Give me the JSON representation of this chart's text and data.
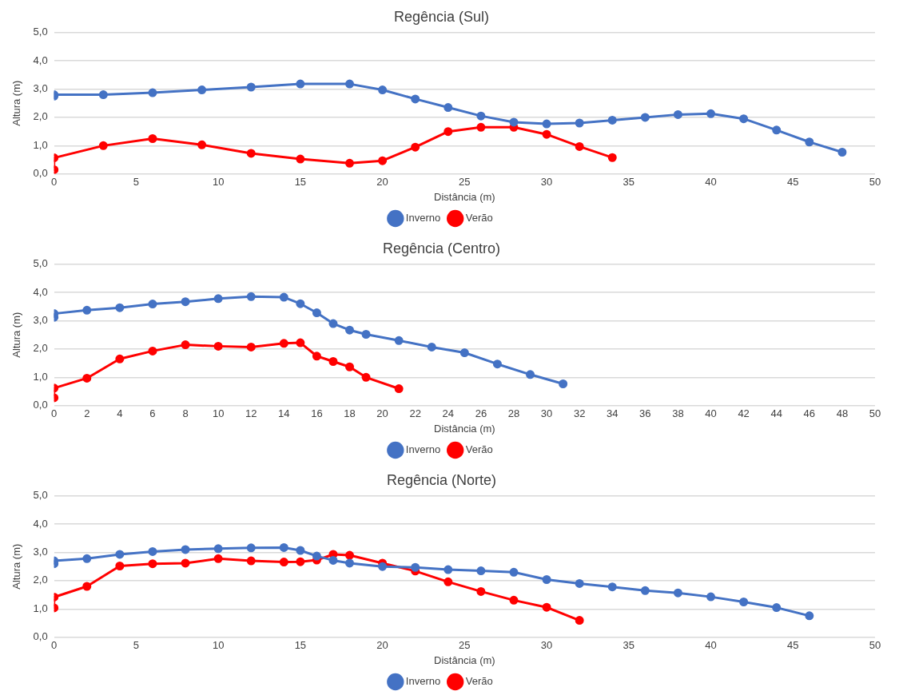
{
  "chart_data": [
    {
      "type": "line",
      "title": "Regência (Sul)",
      "xlabel": "Distância (m)",
      "ylabel": "Altura (m)",
      "xlim": [
        0,
        50
      ],
      "xticks": [
        0,
        5,
        10,
        15,
        20,
        25,
        30,
        35,
        40,
        45,
        50
      ],
      "ylim": [
        0,
        5
      ],
      "yticks": [
        {
          "value": 0,
          "label": "0,0"
        },
        {
          "value": 1,
          "label": "1,0"
        },
        {
          "value": 2,
          "label": "2,0"
        },
        {
          "value": 3,
          "label": "3,0"
        },
        {
          "value": 4,
          "label": "4,0"
        },
        {
          "value": 5,
          "label": "5,0"
        }
      ],
      "grid": "y",
      "legend": "bottom",
      "marker": "circle",
      "series": [
        {
          "name": "Inverno",
          "color": "#4472c4",
          "x": [
            0,
            0,
            3,
            6,
            9,
            12,
            15,
            18,
            20,
            22,
            24,
            26,
            28,
            30,
            32,
            34,
            36,
            38,
            40,
            42,
            44,
            46,
            48
          ],
          "values": [
            2.75,
            2.8,
            2.8,
            2.87,
            2.97,
            3.07,
            3.18,
            3.18,
            2.97,
            2.65,
            2.35,
            2.05,
            1.83,
            1.77,
            1.8,
            1.9,
            2.0,
            2.1,
            2.13,
            1.95,
            1.55,
            1.13,
            0.77
          ]
        },
        {
          "name": "Verão",
          "color": "#ff0000",
          "x": [
            0,
            0,
            3,
            6,
            9,
            12,
            15,
            18,
            20,
            22,
            24,
            26,
            28,
            30,
            32,
            34
          ],
          "values": [
            0.15,
            0.57,
            1.0,
            1.25,
            1.03,
            0.73,
            0.53,
            0.38,
            0.47,
            0.95,
            1.5,
            1.65,
            1.65,
            1.4,
            0.97,
            0.58
          ]
        }
      ]
    },
    {
      "type": "line",
      "title": "Regência (Centro)",
      "xlabel": "Distância (m)",
      "ylabel": "Altura (m)",
      "xlim": [
        0,
        50
      ],
      "xticks": [
        0,
        2,
        4,
        6,
        8,
        10,
        12,
        14,
        16,
        18,
        20,
        22,
        24,
        26,
        28,
        30,
        32,
        34,
        36,
        38,
        40,
        42,
        44,
        46,
        48,
        50
      ],
      "ylim": [
        0,
        5
      ],
      "yticks": [
        {
          "value": 0,
          "label": "0,0"
        },
        {
          "value": 1,
          "label": "1,0"
        },
        {
          "value": 2,
          "label": "2,0"
        },
        {
          "value": 3,
          "label": "3,0"
        },
        {
          "value": 4,
          "label": "4,0"
        },
        {
          "value": 5,
          "label": "5,0"
        }
      ],
      "grid": "y",
      "legend": "bottom",
      "marker": "circle",
      "series": [
        {
          "name": "Inverno",
          "color": "#4472c4",
          "x": [
            0,
            0,
            2,
            4,
            6,
            8,
            10,
            12,
            14,
            15,
            16,
            17,
            18,
            19,
            21,
            23,
            25,
            27,
            29,
            31
          ],
          "values": [
            3.12,
            3.25,
            3.37,
            3.46,
            3.59,
            3.67,
            3.78,
            3.85,
            3.83,
            3.6,
            3.28,
            2.9,
            2.67,
            2.52,
            2.3,
            2.07,
            1.87,
            1.47,
            1.1,
            0.77
          ]
        },
        {
          "name": "Verão",
          "color": "#ff0000",
          "x": [
            0,
            0,
            2,
            4,
            6,
            8,
            10,
            12,
            14,
            15,
            16,
            17,
            18,
            19,
            21
          ],
          "values": [
            0.28,
            0.62,
            0.97,
            1.65,
            1.93,
            2.15,
            2.1,
            2.07,
            2.2,
            2.22,
            1.75,
            1.56,
            1.37,
            1.0,
            0.6
          ]
        }
      ]
    },
    {
      "type": "line",
      "title": "Regência (Norte)",
      "xlabel": "Distância (m)",
      "ylabel": "Altura (m)",
      "xlim": [
        0,
        50
      ],
      "xticks": [
        0,
        5,
        10,
        15,
        20,
        25,
        30,
        35,
        40,
        45,
        50
      ],
      "ylim": [
        0,
        5
      ],
      "yticks": [
        {
          "value": 0,
          "label": "0,0"
        },
        {
          "value": 1,
          "label": "1,0"
        },
        {
          "value": 2,
          "label": "2,0"
        },
        {
          "value": 3,
          "label": "3,0"
        },
        {
          "value": 4,
          "label": "4,0"
        },
        {
          "value": 5,
          "label": "5,0"
        }
      ],
      "grid": "y",
      "legend": "bottom",
      "marker": "circle",
      "series": [
        {
          "name": "Inverno",
          "color": "#4472c4",
          "x": [
            0,
            0,
            2,
            4,
            6,
            8,
            10,
            12,
            14,
            15,
            16,
            17,
            18,
            20,
            22,
            24,
            26,
            28,
            30,
            32,
            34,
            36,
            38,
            40,
            42,
            44,
            46
          ],
          "values": [
            2.6,
            2.7,
            2.78,
            2.93,
            3.03,
            3.1,
            3.13,
            3.16,
            3.17,
            3.07,
            2.87,
            2.72,
            2.62,
            2.5,
            2.47,
            2.39,
            2.35,
            2.3,
            2.04,
            1.9,
            1.78,
            1.65,
            1.57,
            1.43,
            1.25,
            1.05,
            0.76
          ]
        },
        {
          "name": "Verão",
          "color": "#ff0000",
          "x": [
            0,
            0,
            2,
            4,
            6,
            8,
            10,
            12,
            14,
            15,
            16,
            17,
            18,
            20,
            22,
            24,
            26,
            28,
            30,
            32
          ],
          "values": [
            1.04,
            1.42,
            1.8,
            2.52,
            2.6,
            2.62,
            2.78,
            2.7,
            2.66,
            2.67,
            2.73,
            2.93,
            2.9,
            2.62,
            2.34,
            1.96,
            1.62,
            1.31,
            1.06,
            0.6
          ]
        }
      ]
    }
  ]
}
